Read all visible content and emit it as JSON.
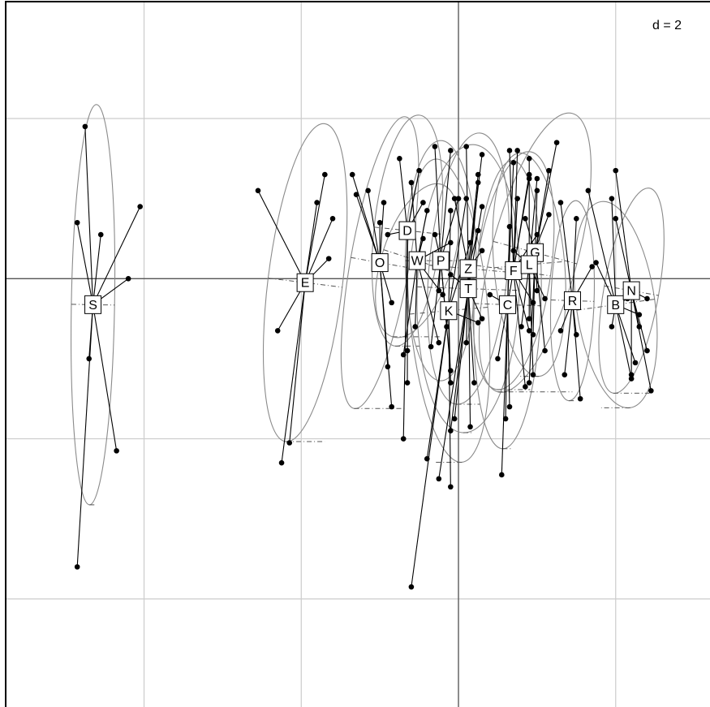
{
  "chart_data": {
    "type": "scatter",
    "title": "",
    "xlabel": "",
    "ylabel": "",
    "scale_label": "d = 2",
    "grid": true,
    "xlim": [
      -11.5,
      6.4
    ],
    "ylim": [
      -10.7,
      6.9
    ],
    "grid_x": [
      -8,
      -4,
      0,
      4
    ],
    "grid_y": [
      4,
      0,
      -4,
      -8
    ],
    "colors": {
      "points": "#000000",
      "ellipse": "#8a8a8a",
      "grid": "#cccccc",
      "axis": "#555555"
    },
    "groups": [
      {
        "label": "S",
        "center": [
          -9.3,
          -0.65
        ],
        "ellipse": {
          "rx": 0.55,
          "ry": 5.0,
          "angle": 89
        },
        "points": [
          [
            -9.5,
            3.8
          ],
          [
            -9.7,
            1.4
          ],
          [
            -9.1,
            1.1
          ],
          [
            -8.1,
            1.8
          ],
          [
            -8.4,
            0
          ],
          [
            -9.4,
            -2
          ],
          [
            -8.7,
            -4.3
          ],
          [
            -9.7,
            -7.2
          ]
        ]
      },
      {
        "label": "E",
        "center": [
          -3.9,
          -0.1
        ],
        "ellipse": {
          "rx": 0.95,
          "ry": 4.0,
          "angle": 83
        },
        "points": [
          [
            -5.1,
            2.2
          ],
          [
            -3.4,
            2.6
          ],
          [
            -3.2,
            1.5
          ],
          [
            -3.6,
            1.9
          ],
          [
            -3.3,
            0.5
          ],
          [
            -4.6,
            -1.3
          ],
          [
            -4.3,
            -4.1
          ],
          [
            -4.5,
            -4.6
          ]
        ]
      },
      {
        "label": "O",
        "center": [
          -2.0,
          0.4
        ],
        "ellipse": {
          "rx": 0.75,
          "ry": 3.7,
          "angle": 80
        },
        "points": [
          [
            -2.7,
            2.6
          ],
          [
            -2.6,
            2.1
          ],
          [
            -2.3,
            2.2
          ],
          [
            -1.9,
            1.9
          ],
          [
            -2.0,
            1.4
          ],
          [
            -1.7,
            -0.6
          ],
          [
            -1.8,
            -2.2
          ],
          [
            -1.7,
            -3.2
          ]
        ]
      },
      {
        "label": "D",
        "center": [
          -1.3,
          1.2
        ],
        "ellipse": {
          "rx": 0.85,
          "ry": 2.9,
          "angle": 84
        },
        "points": [
          [
            -1.5,
            3.0
          ],
          [
            -1.0,
            2.7
          ],
          [
            -0.9,
            1.9
          ],
          [
            -1.8,
            1.1
          ],
          [
            -1.3,
            -1.8
          ],
          [
            -1.3,
            -2.6
          ],
          [
            -1.4,
            -4.0
          ]
        ]
      },
      {
        "label": "W",
        "center": [
          -1.05,
          0.45
        ],
        "ellipse": {
          "rx": 0.9,
          "ry": 2.0,
          "angle": 72
        },
        "points": [
          [
            -1.2,
            2.4
          ],
          [
            -0.8,
            1.7
          ],
          [
            -0.9,
            1.0
          ],
          [
            -0.2,
            0.9
          ],
          [
            -0.4,
            -0.4
          ],
          [
            -1.1,
            -1.2
          ],
          [
            -1.4,
            -1.9
          ],
          [
            -0.5,
            -1.6
          ]
        ]
      },
      {
        "label": "P",
        "center": [
          -0.45,
          0.45
        ],
        "ellipse": {
          "rx": 0.9,
          "ry": 3.0,
          "angle": 90
        },
        "points": [
          [
            -0.6,
            3.3
          ],
          [
            -0.2,
            3.2
          ],
          [
            0,
            2.0
          ],
          [
            -0.6,
            1.1
          ],
          [
            -0.5,
            -0.3
          ],
          [
            -0.3,
            -1.2
          ],
          [
            -0.7,
            -1.7
          ],
          [
            -0.2,
            -2.3
          ]
        ]
      },
      {
        "label": "K",
        "center": [
          -0.25,
          -0.8
        ],
        "ellipse": {
          "rx": 1.0,
          "ry": 3.8,
          "angle": 95
        },
        "points": [
          [
            0.2,
            2.0
          ],
          [
            -0.2,
            1.7
          ],
          [
            0.3,
            0.9
          ],
          [
            0.5,
            -1.1
          ],
          [
            -0.2,
            -2.6
          ],
          [
            -0.2,
            -5.2
          ],
          [
            -0.8,
            -4.5
          ],
          [
            -1.2,
            -7.7
          ]
        ]
      },
      {
        "label": "Z",
        "center": [
          0.25,
          0.25
        ],
        "ellipse": {
          "rx": 1.0,
          "ry": 3.4,
          "angle": 85
        },
        "points": [
          [
            0.2,
            3.3
          ],
          [
            0.6,
            3.1
          ],
          [
            0.5,
            2.6
          ],
          [
            -0.1,
            2.0
          ],
          [
            0.5,
            1.2
          ],
          [
            0.6,
            0.7
          ],
          [
            0.2,
            -1.6
          ],
          [
            0.3,
            -3.7
          ]
        ]
      },
      {
        "label": "T",
        "center": [
          0.25,
          -0.25
        ],
        "ellipse": {
          "rx": 1.3,
          "ry": 3.6,
          "angle": 88
        },
        "points": [
          [
            0.5,
            2.4
          ],
          [
            0.6,
            1.8
          ],
          [
            -0.2,
            0.1
          ],
          [
            0.6,
            -1.0
          ],
          [
            0.4,
            -2.6
          ],
          [
            -0.1,
            -3.5
          ],
          [
            -0.2,
            -3.8
          ],
          [
            -0.5,
            -5.0
          ]
        ]
      },
      {
        "label": "C",
        "center": [
          1.25,
          -0.65
        ],
        "ellipse": {
          "rx": 0.85,
          "ry": 3.6,
          "angle": 88
        },
        "points": [
          [
            1.4,
            2.9
          ],
          [
            1.8,
            2.5
          ],
          [
            1.3,
            1.3
          ],
          [
            0.8,
            -0.4
          ],
          [
            1.0,
            -2.0
          ],
          [
            1.3,
            -3.2
          ],
          [
            1.2,
            -3.5
          ],
          [
            1.1,
            -4.9
          ]
        ]
      },
      {
        "label": "F",
        "center": [
          1.4,
          0.2
        ],
        "ellipse": {
          "rx": 0.95,
          "ry": 3.0,
          "angle": 82
        },
        "points": [
          [
            1.3,
            3.2
          ],
          [
            1.5,
            3.2
          ],
          [
            1.8,
            2.6
          ],
          [
            1.5,
            2.0
          ],
          [
            2.0,
            1.1
          ],
          [
            1.9,
            -0.6
          ],
          [
            1.8,
            -1.3
          ],
          [
            1.7,
            -2.7
          ]
        ]
      },
      {
        "label": "G",
        "center": [
          1.95,
          0.65
        ],
        "ellipse": {
          "rx": 1.1,
          "ry": 3.6,
          "angle": 75
        },
        "points": [
          [
            2.5,
            3.4
          ],
          [
            2.3,
            2.7
          ],
          [
            2.0,
            2.2
          ],
          [
            1.7,
            1.5
          ],
          [
            2.0,
            -0.3
          ],
          [
            1.9,
            -1.4
          ],
          [
            2.2,
            -1.8
          ],
          [
            1.8,
            -2.6
          ]
        ]
      },
      {
        "label": "L",
        "center": [
          1.8,
          0.35
        ],
        "ellipse": {
          "rx": 0.9,
          "ry": 2.8,
          "angle": 95
        },
        "points": [
          [
            1.8,
            3.0
          ],
          [
            2.0,
            2.5
          ],
          [
            2.3,
            1.6
          ],
          [
            1.4,
            0.7
          ],
          [
            2.2,
            -0.5
          ],
          [
            1.6,
            -1.2
          ],
          [
            1.9,
            -2.4
          ],
          [
            1.8,
            -1.0
          ]
        ]
      },
      {
        "label": "R",
        "center": [
          2.9,
          -0.55
        ],
        "ellipse": {
          "rx": 0.55,
          "ry": 2.5,
          "angle": 88
        },
        "points": [
          [
            2.6,
            1.9
          ],
          [
            3.0,
            1.5
          ],
          [
            3.4,
            0.3
          ],
          [
            2.8,
            -0.7
          ],
          [
            2.6,
            -1.3
          ],
          [
            3.0,
            -1.4
          ],
          [
            2.7,
            -2.4
          ],
          [
            3.1,
            -3.0
          ]
        ]
      },
      {
        "label": "B",
        "center": [
          4.0,
          -0.65
        ],
        "ellipse": {
          "rx": 1.0,
          "ry": 2.6,
          "angle": 98
        },
        "points": [
          [
            3.3,
            2.2
          ],
          [
            3.9,
            2.0
          ],
          [
            3.5,
            0.4
          ],
          [
            4.3,
            -0.5
          ],
          [
            4.6,
            -0.9
          ],
          [
            3.9,
            -1.2
          ],
          [
            4.5,
            -2.1
          ],
          [
            4.4,
            -2.5
          ]
        ]
      },
      {
        "label": "N",
        "center": [
          4.4,
          -0.3
        ],
        "ellipse": {
          "rx": 0.7,
          "ry": 2.6,
          "angle": 80
        },
        "points": [
          [
            4.0,
            2.7
          ],
          [
            4.0,
            1.5
          ],
          [
            4.8,
            -0.5
          ],
          [
            4.6,
            -1.2
          ],
          [
            4.8,
            -1.8
          ],
          [
            4.4,
            -2.4
          ],
          [
            4.9,
            -2.8
          ]
        ]
      }
    ]
  }
}
